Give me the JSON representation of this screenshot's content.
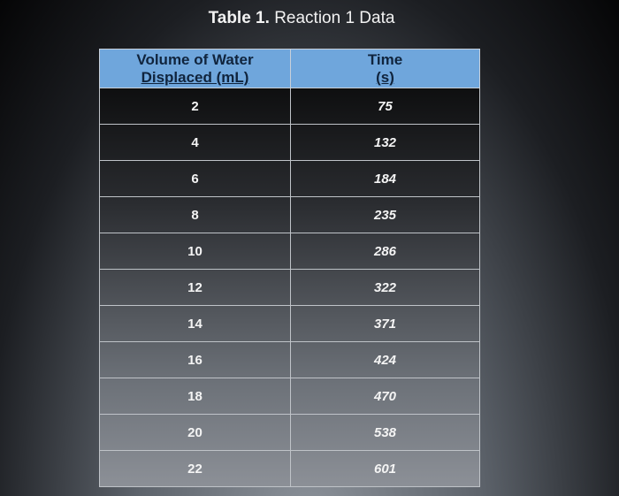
{
  "title": {
    "label": "Table 1.",
    "text": "Reaction 1 Data"
  },
  "table": {
    "headers": [
      [
        "Volume of Water",
        "Displaced (mL)"
      ],
      [
        "Time",
        "(s)"
      ]
    ],
    "rows": [
      [
        2,
        75
      ],
      [
        4,
        132
      ],
      [
        6,
        184
      ],
      [
        8,
        235
      ],
      [
        10,
        286
      ],
      [
        12,
        322
      ],
      [
        14,
        371
      ],
      [
        16,
        424
      ],
      [
        18,
        470
      ],
      [
        20,
        538
      ],
      [
        22,
        601
      ]
    ]
  }
}
